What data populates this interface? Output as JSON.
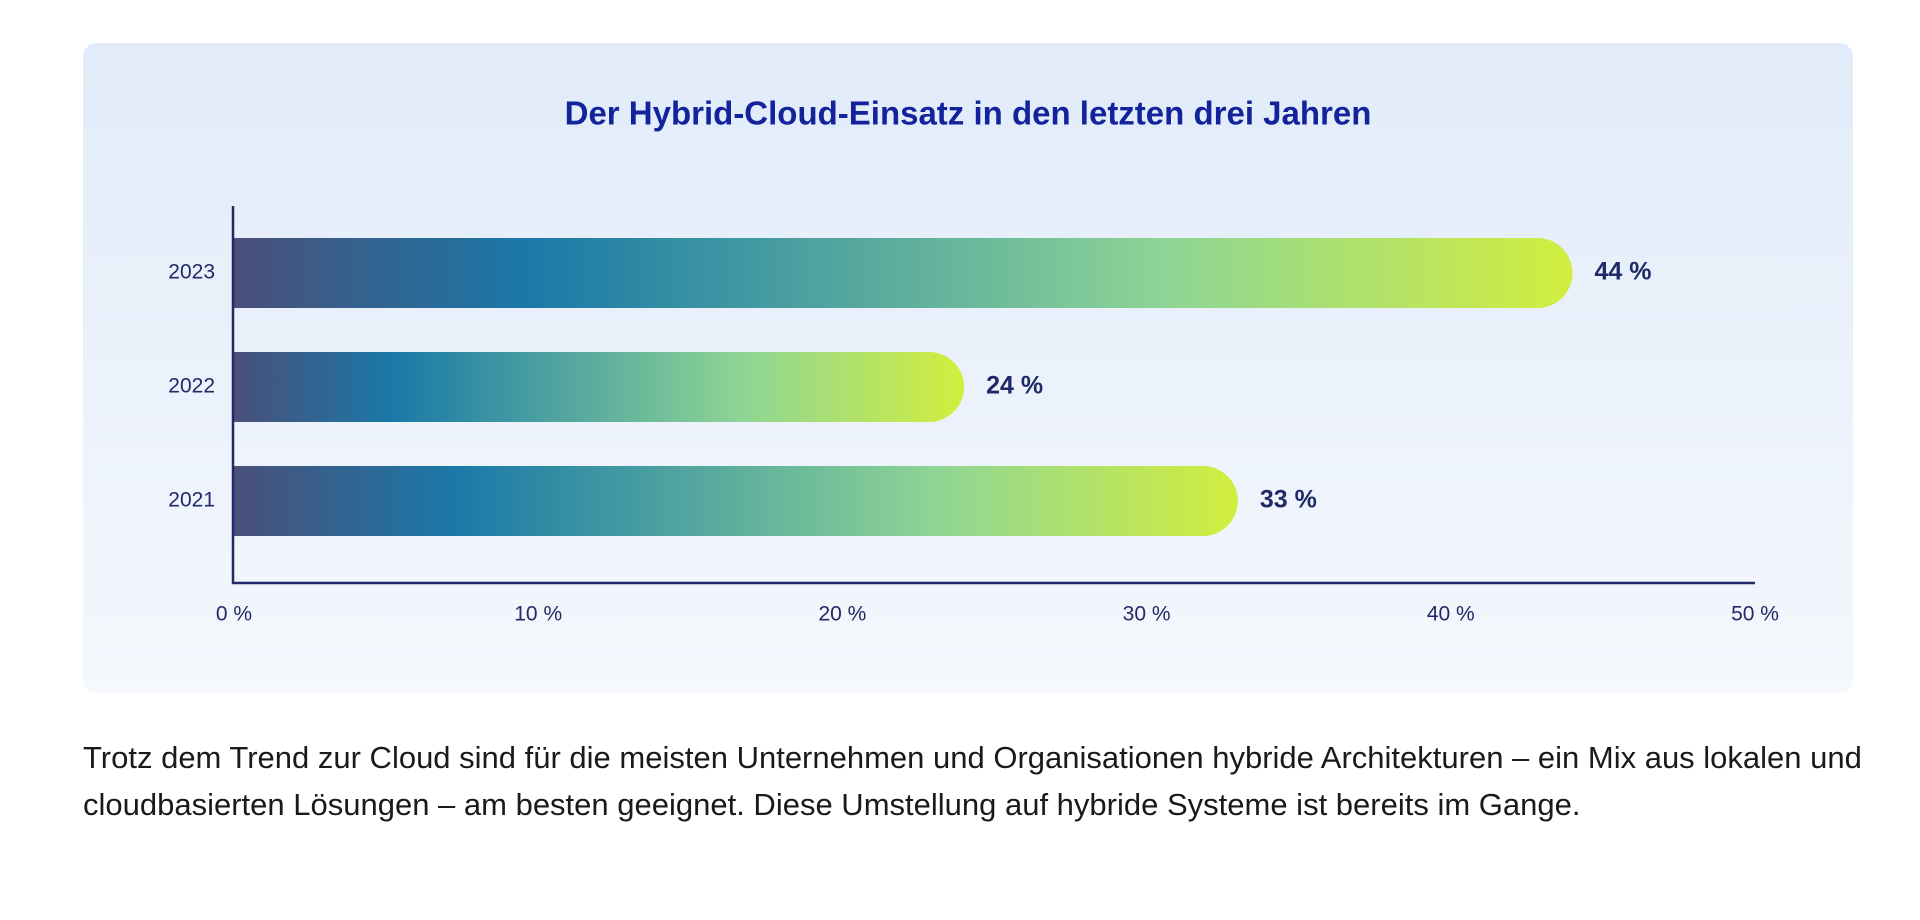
{
  "chart_data": {
    "type": "bar",
    "orientation": "horizontal",
    "title": "Der Hybrid-Cloud-Einsatz in den letzten drei Jahren",
    "xlabel": "",
    "ylabel": "",
    "categories": [
      "2023",
      "2022",
      "2021"
    ],
    "values": [
      44,
      24,
      33
    ],
    "value_labels": [
      "44 %",
      "24 %",
      "33 %"
    ],
    "xlim": [
      0,
      50
    ],
    "x_ticks": [
      0,
      10,
      20,
      30,
      40,
      50
    ],
    "x_tick_labels": [
      "0 %",
      "10 %",
      "20 %",
      "30 %",
      "40 %",
      "50 %"
    ],
    "grid": false,
    "bar_gradient": [
      "#4a4f7a",
      "#1a79a8",
      "#8fd595",
      "#d2ee3e"
    ],
    "axis_color": "#1f2a66",
    "title_color": "#12239c"
  },
  "caption": "Trotz dem Trend zur Cloud sind für die meisten Unternehmen und Organisationen hybride Architekturen – ein Mix aus lokalen und cloudbasierten Lösungen – am besten geeignet. Diese Umstellung auf hybride Systeme ist bereits im Gange."
}
